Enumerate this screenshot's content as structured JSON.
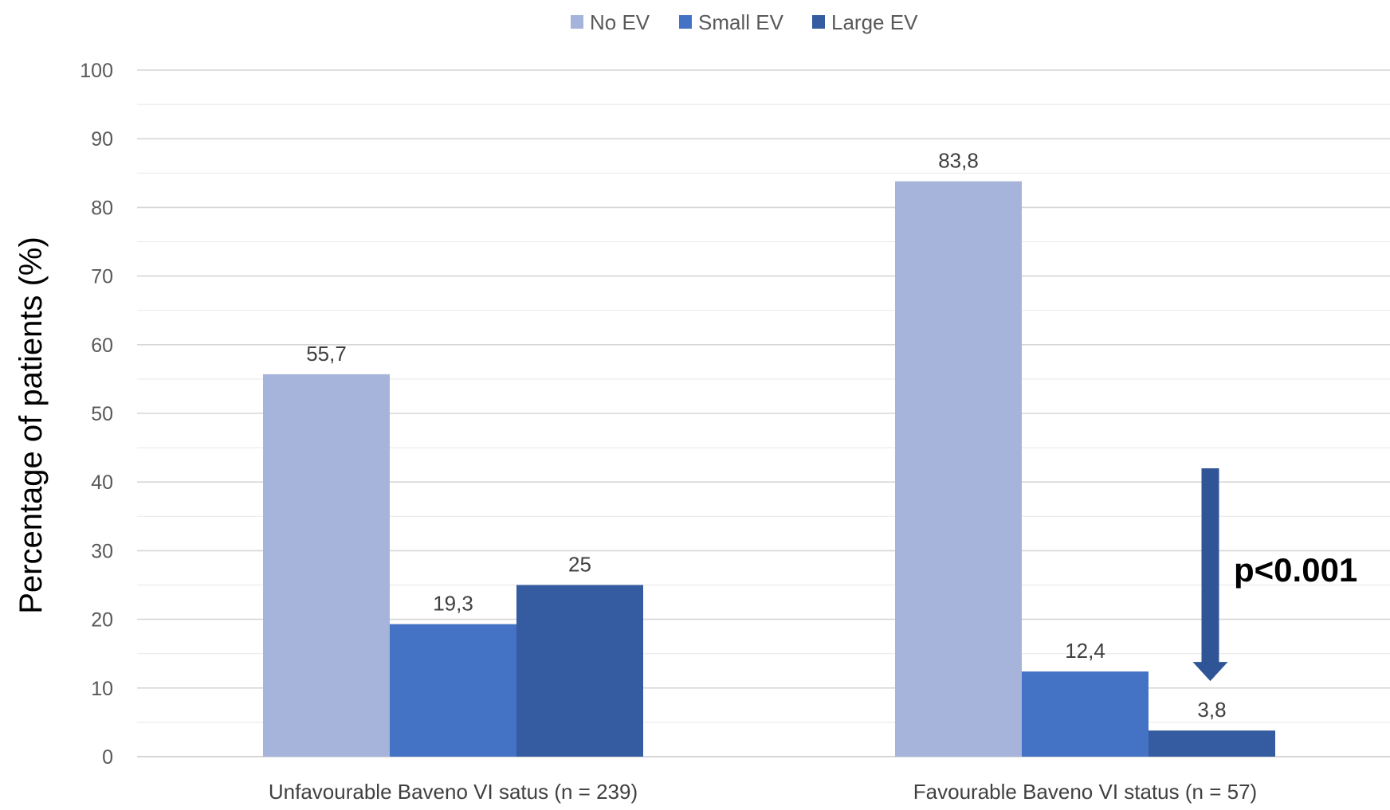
{
  "chart_data": {
    "type": "bar",
    "title": "",
    "xlabel": "",
    "ylabel": "Percentage of patients (%)",
    "ylim": [
      0,
      100
    ],
    "yticks": [
      "0",
      "10",
      "20",
      "30",
      "40",
      "50",
      "60",
      "70",
      "80",
      "90",
      "100"
    ],
    "grid": true,
    "legend_position": "top-center",
    "categories": [
      "Unfavourable Baveno VI satus (n = 239)",
      "Favourable Baveno VI status (n = 57)"
    ],
    "series": [
      {
        "name": "No EV",
        "color": "#a6b3da",
        "values": [
          55.7,
          83.8
        ],
        "labels": [
          "55,7",
          "83,8"
        ]
      },
      {
        "name": "Small EV",
        "color": "#4472c4",
        "values": [
          19.3,
          12.4
        ],
        "labels": [
          "19,3",
          "12,4"
        ]
      },
      {
        "name": "Large EV",
        "color": "#355ca0",
        "values": [
          25,
          3.8
        ],
        "labels": [
          "25",
          "3,8"
        ]
      }
    ],
    "annotation": {
      "text": "p<0.001",
      "arrow_color": "#2f5597",
      "arrow_from_value": 42,
      "arrow_to_value": 11,
      "category_index": 1,
      "series_index": 2
    }
  }
}
